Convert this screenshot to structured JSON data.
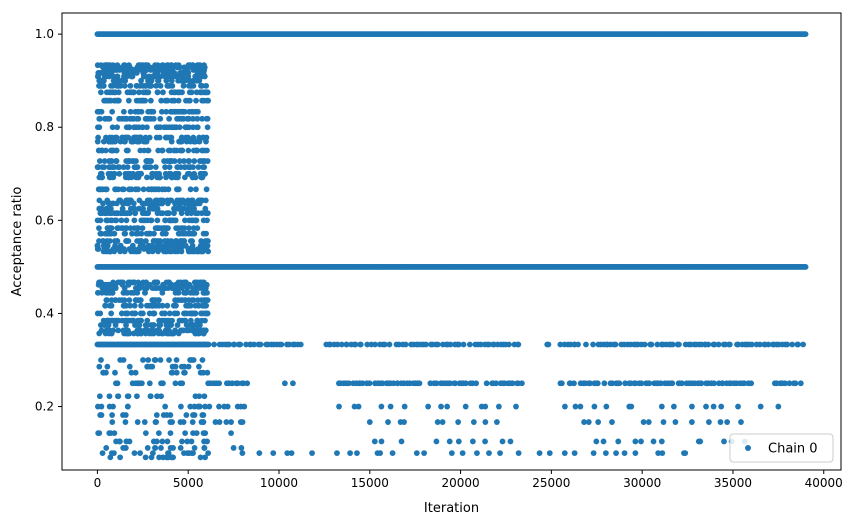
{
  "chart_data": {
    "type": "scatter",
    "title": "",
    "xlabel": "Iteration",
    "ylabel": "Acceptance ratio",
    "xlim": [
      -1950,
      40950
    ],
    "ylim": [
      0.0637,
      1.0454
    ],
    "xticks": [
      0,
      5000,
      10000,
      15000,
      20000,
      25000,
      30000,
      35000,
      40000
    ],
    "xtick_labels": [
      "0",
      "5000",
      "10000",
      "15000",
      "20000",
      "25000",
      "30000",
      "35000",
      "40000"
    ],
    "yticks": [
      0.2,
      0.4,
      0.6,
      0.8,
      1.0
    ],
    "ytick_labels": [
      "0.2",
      "0.4",
      "0.6",
      "0.8",
      "1.0"
    ],
    "grid": false,
    "legend_position": "lower right",
    "series": [
      {
        "name": "Chain 0",
        "color": "#1f77b4",
        "marker": "o",
        "segments": [
          {
            "x_start": 0,
            "x_end": 39000,
            "y": 1.0,
            "density": "continuous"
          },
          {
            "x_start": 0,
            "x_end": 39000,
            "y": 0.5,
            "density": "continuous"
          },
          {
            "x_start": 0,
            "x_end": 6100,
            "y": 0.3333,
            "density": "continuous"
          },
          {
            "x_start": 6100,
            "x_end": 11200,
            "y": 0.3333,
            "density": "dense"
          },
          {
            "x_start": 12600,
            "x_end": 23500,
            "y": 0.3333,
            "density": "dense"
          },
          {
            "x_start": 24700,
            "x_end": 39000,
            "y": 0.3333,
            "density": "dense"
          },
          {
            "x_start": 6100,
            "x_end": 8400,
            "y": 0.25,
            "density": "dense"
          },
          {
            "x_start": 10000,
            "x_end": 11000,
            "y": 0.25,
            "density": "sparse"
          },
          {
            "x_start": 13300,
            "x_end": 23400,
            "y": 0.25,
            "density": "dense"
          },
          {
            "x_start": 25500,
            "x_end": 36000,
            "y": 0.25,
            "density": "dense"
          },
          {
            "x_start": 37300,
            "x_end": 38800,
            "y": 0.25,
            "density": "dense"
          },
          {
            "x_start": 6000,
            "x_end": 8400,
            "y": 0.2,
            "density": "medium"
          },
          {
            "x_start": 13300,
            "x_end": 23400,
            "y": 0.2,
            "density": "sparse"
          },
          {
            "x_start": 25500,
            "x_end": 37500,
            "y": 0.2,
            "density": "sparse"
          },
          {
            "x_start": 6500,
            "x_end": 8300,
            "y": 0.1667,
            "density": "medium"
          },
          {
            "x_start": 15000,
            "x_end": 22000,
            "y": 0.1667,
            "density": "sparse"
          },
          {
            "x_start": 26500,
            "x_end": 36500,
            "y": 0.1667,
            "density": "sparse"
          },
          {
            "x_start": 7000,
            "x_end": 8200,
            "y": 0.1429,
            "density": "sparse"
          },
          {
            "x_start": 15000,
            "x_end": 23300,
            "y": 0.125,
            "density": "sparse"
          },
          {
            "x_start": 26500,
            "x_end": 36000,
            "y": 0.125,
            "density": "sparse"
          },
          {
            "x_start": 7500,
            "x_end": 8200,
            "y": 0.1111,
            "density": "sparse"
          },
          {
            "x_start": 7500,
            "x_end": 33000,
            "y": 0.1,
            "density": "sparse"
          }
        ],
        "early_region": {
          "x_start": 0,
          "x_end": 6100,
          "levels": [
            0.9333,
            0.9286,
            0.9231,
            0.9167,
            0.9091,
            0.9,
            0.8889,
            0.875,
            0.8571,
            0.8333,
            0.8182,
            0.8,
            0.7778,
            0.7692,
            0.75,
            0.7273,
            0.7143,
            0.7,
            0.6923,
            0.6667,
            0.6429,
            0.6364,
            0.625,
            0.6154,
            0.6,
            0.5833,
            0.5714,
            0.5556,
            0.5455,
            0.5385,
            0.5333,
            0.4667,
            0.4615,
            0.4545,
            0.4444,
            0.4286,
            0.4167,
            0.4,
            0.3846,
            0.375,
            0.3636,
            0.3571,
            0.3,
            0.2857,
            0.2727,
            0.25,
            0.2222,
            0.2,
            0.1818,
            0.1667,
            0.1429,
            0.125,
            0.1111,
            0.1,
            0.0909
          ]
        }
      }
    ]
  }
}
